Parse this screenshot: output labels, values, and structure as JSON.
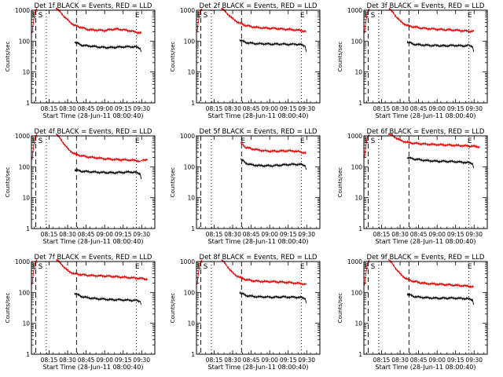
{
  "colors": {
    "background": "#ffffff",
    "axes": "#000000",
    "events_series": "#000000",
    "lld_series": "#e00000"
  },
  "shared": {
    "ylabel": "Counts/sec",
    "xlabel": "Start Time (28-Jun-11 08:00:40)",
    "x_tick_labels": [
      "08:15",
      "08:30",
      "08:45",
      "09:00",
      "09:15",
      "09:30"
    ],
    "y_tick_labels": [
      "1",
      "10",
      "100",
      "1000"
    ]
  },
  "chart_data": [
    {
      "type": "line",
      "title": "Det 1f BLACK = Events, RED = LLD",
      "marker_labels": [
        "E",
        "S",
        "E"
      ],
      "y_scale": "log",
      "ylim": [
        1,
        1000
      ],
      "series": [
        {
          "name": "Events",
          "color": "#000000",
          "segments": [
            {
              "x": [
                35,
                40,
                45,
                50,
                55,
                60,
                65,
                70,
                75,
                80,
                85,
                88,
                89
              ],
              "y": [
                95,
                75,
                70,
                68,
                64,
                62,
                62,
                64,
                65,
                66,
                64,
                60,
                45
              ]
            }
          ]
        },
        {
          "name": "LLD",
          "color": "#e00000",
          "segments": [
            {
              "x": [
                0.5,
                1.5,
                3,
                4,
                4.5
              ],
              "y": [
                180,
                380,
                900,
                1100,
                900
              ]
            },
            {
              "x": [
                20,
                30,
                35,
                40,
                45,
                50,
                55,
                60,
                65,
                70,
                75,
                80,
                85,
                89
              ],
              "y": [
                1200,
                450,
                320,
                280,
                240,
                230,
                225,
                220,
                240,
                245,
                230,
                215,
                195,
                180
              ]
            }
          ]
        }
      ]
    },
    {
      "type": "line",
      "title": "Det 2f BLACK = Events, RED = LLD",
      "marker_labels": [
        "E",
        "S",
        "E"
      ],
      "y_scale": "log",
      "ylim": [
        1,
        1000
      ],
      "series": [
        {
          "name": "Events",
          "color": "#000000",
          "segments": [
            {
              "x": [
                35,
                40,
                45,
                50,
                55,
                60,
                65,
                70,
                75,
                80,
                85,
                88,
                89
              ],
              "y": [
                110,
                90,
                85,
                82,
                82,
                80,
                80,
                80,
                78,
                80,
                76,
                70,
                45
              ]
            }
          ]
        },
        {
          "name": "LLD",
          "color": "#e00000",
          "segments": [
            {
              "x": [
                0.5,
                1.5,
                3,
                4,
                4.5
              ],
              "y": [
                200,
                420,
                950,
                1100,
                950
              ]
            },
            {
              "x": [
                20,
                30,
                35,
                40,
                45,
                50,
                55,
                60,
                65,
                70,
                75,
                80,
                85,
                89
              ],
              "y": [
                1200,
                500,
                380,
                320,
                290,
                275,
                265,
                260,
                255,
                245,
                240,
                230,
                220,
                200
              ]
            }
          ]
        }
      ]
    },
    {
      "type": "line",
      "title": "Det 3f BLACK = Events, RED = LLD",
      "marker_labels": [
        "E",
        "S",
        "E"
      ],
      "y_scale": "log",
      "ylim": [
        1,
        1000
      ],
      "series": [
        {
          "name": "Events",
          "color": "#000000",
          "segments": [
            {
              "x": [
                35,
                40,
                45,
                50,
                55,
                60,
                65,
                70,
                75,
                80,
                85,
                88,
                89
              ],
              "y": [
                95,
                80,
                76,
                74,
                72,
                72,
                70,
                72,
                72,
                70,
                72,
                68,
                45
              ]
            }
          ]
        },
        {
          "name": "LLD",
          "color": "#e00000",
          "segments": [
            {
              "x": [
                0.5,
                1.5,
                3,
                4,
                4.5
              ],
              "y": [
                180,
                400,
                900,
                1100,
                900
              ]
            },
            {
              "x": [
                20,
                30,
                35,
                40,
                45,
                50,
                55,
                60,
                65,
                70,
                75,
                80,
                85,
                89
              ],
              "y": [
                1200,
                420,
                320,
                290,
                270,
                255,
                250,
                240,
                235,
                230,
                225,
                215,
                210,
                205
              ]
            }
          ]
        }
      ]
    },
    {
      "type": "line",
      "title": "Det 4f BLACK = Events, RED = LLD",
      "marker_labels": [
        "E",
        "S",
        "E"
      ],
      "y_scale": "log",
      "ylim": [
        1,
        1000
      ],
      "series": [
        {
          "name": "Events",
          "color": "#000000",
          "segments": [
            {
              "x": [
                35,
                40,
                45,
                50,
                55,
                60,
                65,
                70,
                75,
                80,
                85,
                88,
                89
              ],
              "y": [
                80,
                72,
                70,
                68,
                66,
                65,
                64,
                65,
                66,
                68,
                65,
                60,
                40
              ]
            }
          ]
        },
        {
          "name": "LLD",
          "color": "#e00000",
          "segments": [
            {
              "x": [
                0.5,
                1.5,
                3,
                4,
                4.5
              ],
              "y": [
                170,
                380,
                900,
                1100,
                900
              ]
            },
            {
              "x": [
                20,
                30,
                35,
                40,
                45,
                50,
                55,
                60,
                65,
                70,
                75,
                80,
                85,
                88,
                90,
                94
              ],
              "y": [
                1200,
                360,
                260,
                230,
                210,
                200,
                190,
                180,
                175,
                170,
                168,
                165,
                160,
                150,
                165,
                175
              ]
            }
          ]
        }
      ]
    },
    {
      "type": "line",
      "title": "Det 5f BLACK = Events, RED = LLD",
      "marker_labels": [
        "E",
        "E"
      ],
      "y_scale": "log",
      "ylim": [
        1,
        1000
      ],
      "series": [
        {
          "name": "Events",
          "color": "#000000",
          "segments": [
            {
              "x": [
                36,
                40,
                45,
                50,
                55,
                60,
                65,
                70,
                75,
                80,
                85,
                88,
                89
              ],
              "y": [
                180,
                130,
                115,
                110,
                108,
                108,
                110,
                115,
                118,
                120,
                118,
                110,
                80
              ]
            }
          ]
        },
        {
          "name": "LLD",
          "color": "#e00000",
          "segments": [
            {
              "x": [
                36,
                40,
                45,
                50,
                55,
                60,
                65,
                70,
                75,
                80,
                85,
                89
              ],
              "y": [
                600,
                420,
                380,
                350,
                330,
                320,
                320,
                325,
                330,
                320,
                300,
                270
              ]
            }
          ]
        }
      ]
    },
    {
      "type": "line",
      "title": "Det 6f BLACK = Events, RED = LLD",
      "marker_labels": [
        "E",
        "S",
        "E"
      ],
      "y_scale": "log",
      "ylim": [
        1,
        1000
      ],
      "series": [
        {
          "name": "Events",
          "color": "#000000",
          "segments": [
            {
              "x": [
                35,
                40,
                45,
                50,
                55,
                60,
                65,
                70,
                75,
                80,
                85,
                88,
                89
              ],
              "y": [
                200,
                180,
                170,
                160,
                155,
                150,
                150,
                148,
                145,
                140,
                135,
                130,
                90
              ]
            }
          ]
        },
        {
          "name": "LLD",
          "color": "#e00000",
          "segments": [
            {
              "x": [
                0.5,
                1.5,
                3,
                4,
                4.5
              ],
              "y": [
                200,
                450,
                950,
                1100,
                950
              ]
            },
            {
              "x": [
                20,
                30,
                35,
                40,
                45,
                50,
                55,
                60,
                65,
                70,
                75,
                80,
                85,
                90,
                94
              ],
              "y": [
                1200,
                700,
                620,
                580,
                560,
                540,
                530,
                520,
                510,
                500,
                490,
                480,
                470,
                455,
                440
              ]
            }
          ]
        }
      ]
    },
    {
      "type": "line",
      "title": "Det 7f BLACK = Events, RED = LLD",
      "marker_labels": [
        "E",
        "S",
        "E"
      ],
      "y_scale": "log",
      "ylim": [
        1,
        1000
      ],
      "series": [
        {
          "name": "Events",
          "color": "#000000",
          "segments": [
            {
              "x": [
                35,
                40,
                45,
                50,
                55,
                60,
                65,
                70,
                75,
                80,
                85,
                88,
                89
              ],
              "y": [
                95,
                75,
                68,
                64,
                62,
                60,
                58,
                58,
                57,
                56,
                55,
                52,
                40
              ]
            }
          ]
        },
        {
          "name": "LLD",
          "color": "#e00000",
          "segments": [
            {
              "x": [
                0.5,
                1.5,
                3,
                4,
                4.5
              ],
              "y": [
                180,
                400,
                900,
                1100,
                900
              ]
            },
            {
              "x": [
                20,
                30,
                35,
                40,
                45,
                50,
                55,
                60,
                65,
                70,
                75,
                80,
                85,
                90,
                94
              ],
              "y": [
                1200,
                480,
                400,
                380,
                360,
                350,
                345,
                340,
                330,
                320,
                310,
                300,
                290,
                280,
                270
              ]
            }
          ]
        }
      ]
    },
    {
      "type": "line",
      "title": "Det 8f BLACK = Events, RED = LLD",
      "marker_labels": [
        "E",
        "S",
        "E"
      ],
      "y_scale": "log",
      "ylim": [
        1,
        1000
      ],
      "series": [
        {
          "name": "Events",
          "color": "#000000",
          "segments": [
            {
              "x": [
                35,
                40,
                45,
                50,
                55,
                60,
                65,
                70,
                75,
                80,
                85,
                88,
                89
              ],
              "y": [
                100,
                80,
                75,
                72,
                72,
                70,
                70,
                72,
                70,
                70,
                68,
                65,
                45
              ]
            }
          ]
        },
        {
          "name": "LLD",
          "color": "#e00000",
          "segments": [
            {
              "x": [
                0.5,
                1.5,
                3,
                4,
                4.5
              ],
              "y": [
                180,
                400,
                900,
                1100,
                900
              ]
            },
            {
              "x": [
                20,
                30,
                35,
                40,
                45,
                50,
                55,
                60,
                65,
                70,
                75,
                80,
                85,
                89
              ],
              "y": [
                1200,
                400,
                310,
                260,
                240,
                230,
                225,
                225,
                220,
                215,
                210,
                200,
                195,
                180
              ]
            }
          ]
        }
      ]
    },
    {
      "type": "line",
      "title": "Det 9f BLACK = Events, RED = LLD",
      "marker_labels": [
        "E",
        "S",
        "E"
      ],
      "y_scale": "log",
      "ylim": [
        1,
        1000
      ],
      "series": [
        {
          "name": "Events",
          "color": "#000000",
          "segments": [
            {
              "x": [
                35,
                40,
                45,
                50,
                55,
                60,
                65,
                70,
                75,
                80,
                85,
                88,
                89
              ],
              "y": [
                90,
                75,
                70,
                68,
                66,
                65,
                65,
                66,
                65,
                64,
                62,
                58,
                40
              ]
            }
          ]
        },
        {
          "name": "LLD",
          "color": "#e00000",
          "segments": [
            {
              "x": [
                0.5,
                1.5,
                3,
                4,
                4.5
              ],
              "y": [
                170,
                380,
                900,
                1100,
                900
              ]
            },
            {
              "x": [
                20,
                30,
                35,
                40,
                45,
                50,
                55,
                60,
                65,
                70,
                75,
                80,
                85,
                89
              ],
              "y": [
                1200,
                370,
                270,
                230,
                210,
                195,
                190,
                185,
                180,
                175,
                170,
                165,
                160,
                150
              ]
            }
          ]
        }
      ]
    }
  ]
}
